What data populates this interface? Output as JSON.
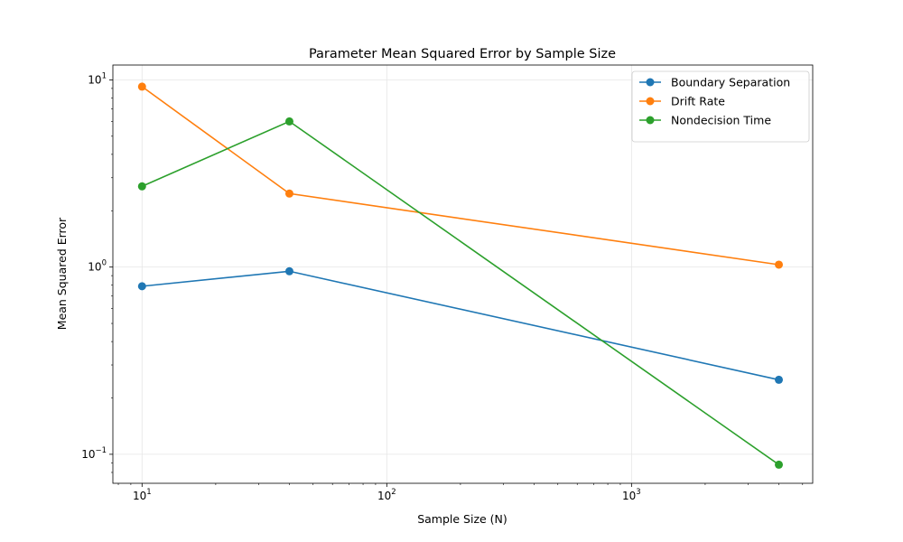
{
  "chart_data": {
    "type": "line",
    "title": "Parameter Mean Squared Error by Sample Size",
    "xlabel": "Sample Size (N)",
    "ylabel": "Mean Squared Error",
    "xscale": "log",
    "yscale": "log",
    "xlim": [
      7.6,
      5500
    ],
    "ylim": [
      0.07,
      12
    ],
    "grid": true,
    "legend_position": "top-right",
    "x": [
      10,
      40,
      4000
    ],
    "x_ticks": [
      {
        "value": 10,
        "base": "10",
        "exp": "1"
      },
      {
        "value": 100,
        "base": "10",
        "exp": "2"
      },
      {
        "value": 1000,
        "base": "10",
        "exp": "3"
      }
    ],
    "y_ticks": [
      {
        "value": 0.1,
        "base": "10",
        "exp": "−1"
      },
      {
        "value": 1,
        "base": "10",
        "exp": "0"
      },
      {
        "value": 10,
        "base": "10",
        "exp": "1"
      }
    ],
    "series": [
      {
        "name": "Boundary Separation",
        "color": "#1f77b4",
        "values": [
          0.79,
          0.95,
          0.25
        ]
      },
      {
        "name": "Drift Rate",
        "color": "#ff7f0e",
        "values": [
          9.2,
          2.47,
          1.03
        ]
      },
      {
        "name": "Nondecision Time",
        "color": "#2ca02c",
        "values": [
          2.7,
          6.0,
          0.088
        ]
      }
    ]
  }
}
